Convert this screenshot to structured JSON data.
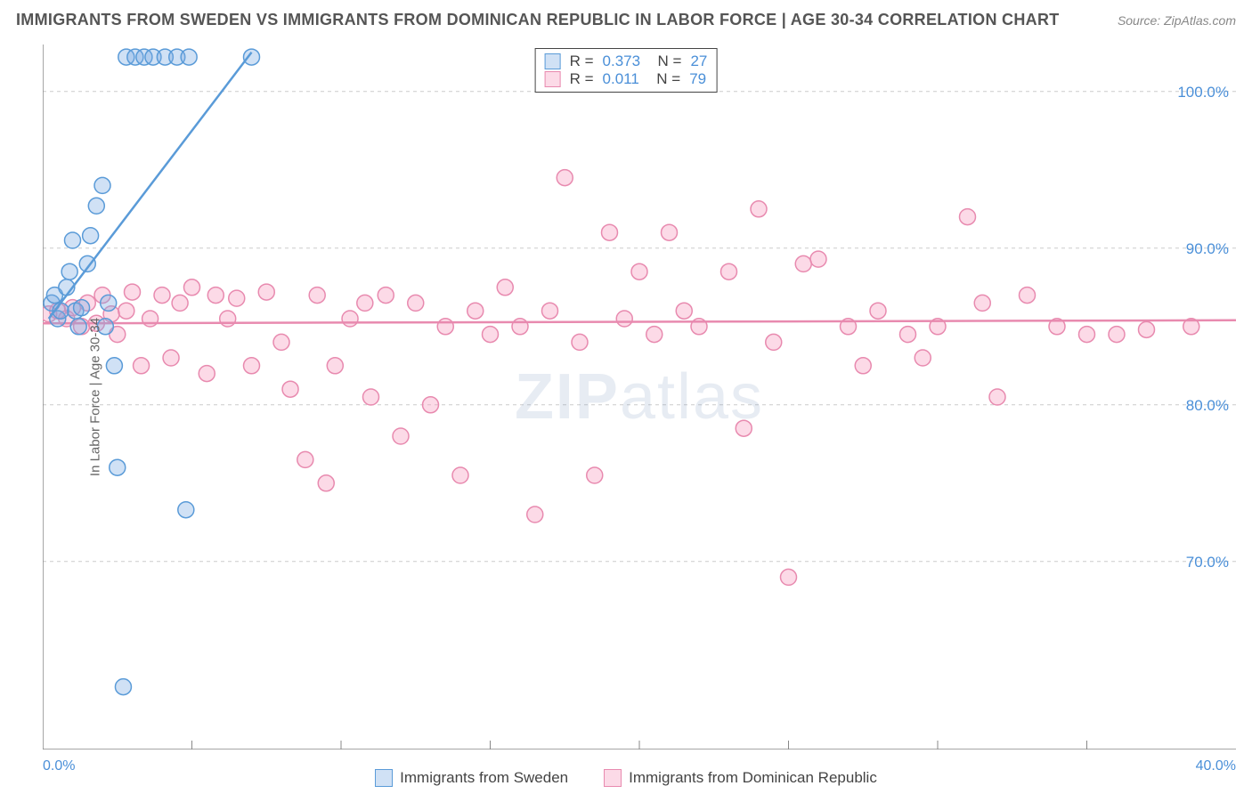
{
  "title": "IMMIGRANTS FROM SWEDEN VS IMMIGRANTS FROM DOMINICAN REPUBLIC IN LABOR FORCE | AGE 30-34 CORRELATION CHART",
  "source": "Source: ZipAtlas.com",
  "ylabel": "In Labor Force | Age 30-34",
  "watermark_a": "ZIP",
  "watermark_b": "atlas",
  "chart": {
    "type": "scatter",
    "xlim": [
      0,
      40
    ],
    "ylim": [
      58,
      103
    ],
    "x_ticks": [
      0,
      5,
      10,
      15,
      20,
      25,
      30,
      35,
      40
    ],
    "y_ticks": [
      70,
      80,
      90,
      100
    ],
    "x_tick_labels_show": [
      "0.0%",
      "40.0%"
    ],
    "y_tick_labels": [
      "70.0%",
      "80.0%",
      "90.0%",
      "100.0%"
    ],
    "grid_color": "#cccccc",
    "axis_color": "#888888",
    "background_color": "#ffffff",
    "tick_label_color": "#4a8fd8",
    "marker_radius": 9,
    "marker_stroke_width": 1.5,
    "line_width": 2.5,
    "series": [
      {
        "name": "Immigrants from Sweden",
        "fill": "rgba(120,170,225,0.35)",
        "stroke": "#5a9bd8",
        "R": "0.373",
        "N": "27",
        "trend": {
          "x1": 0.2,
          "y1": 85.5,
          "x2": 7.0,
          "y2": 102.5
        },
        "points": [
          [
            0.3,
            86.5
          ],
          [
            0.4,
            87.0
          ],
          [
            0.5,
            85.5
          ],
          [
            0.6,
            86.0
          ],
          [
            0.8,
            87.5
          ],
          [
            0.9,
            88.5
          ],
          [
            1.0,
            90.5
          ],
          [
            1.1,
            86.0
          ],
          [
            1.2,
            85.0
          ],
          [
            1.3,
            86.2
          ],
          [
            1.5,
            89.0
          ],
          [
            1.6,
            90.8
          ],
          [
            1.8,
            92.7
          ],
          [
            2.0,
            94.0
          ],
          [
            2.1,
            85.0
          ],
          [
            2.2,
            86.5
          ],
          [
            2.4,
            82.5
          ],
          [
            2.8,
            102.2
          ],
          [
            3.1,
            102.2
          ],
          [
            3.4,
            102.2
          ],
          [
            3.7,
            102.2
          ],
          [
            4.1,
            102.2
          ],
          [
            4.5,
            102.2
          ],
          [
            4.9,
            102.2
          ],
          [
            7.0,
            102.2
          ],
          [
            2.5,
            76.0
          ],
          [
            4.8,
            73.3
          ],
          [
            2.7,
            62.0
          ]
        ]
      },
      {
        "name": "Immigrants from Dominican Republic",
        "fill": "rgba(245,150,185,0.35)",
        "stroke": "#e88aaf",
        "R": "0.011",
        "N": "79",
        "trend": {
          "x1": 0,
          "y1": 85.2,
          "x2": 40,
          "y2": 85.4
        },
        "points": [
          [
            0.2,
            85.8
          ],
          [
            0.5,
            86.0
          ],
          [
            0.8,
            85.5
          ],
          [
            1.0,
            86.2
          ],
          [
            1.3,
            85.0
          ],
          [
            1.5,
            86.5
          ],
          [
            1.8,
            85.2
          ],
          [
            2.0,
            87.0
          ],
          [
            2.3,
            85.8
          ],
          [
            2.5,
            84.5
          ],
          [
            2.8,
            86.0
          ],
          [
            3.0,
            87.2
          ],
          [
            3.3,
            82.5
          ],
          [
            3.6,
            85.5
          ],
          [
            4.0,
            87.0
          ],
          [
            4.3,
            83.0
          ],
          [
            4.6,
            86.5
          ],
          [
            5.0,
            87.5
          ],
          [
            5.5,
            82.0
          ],
          [
            5.8,
            87.0
          ],
          [
            6.2,
            85.5
          ],
          [
            6.5,
            86.8
          ],
          [
            7.0,
            82.5
          ],
          [
            7.5,
            87.2
          ],
          [
            8.0,
            84.0
          ],
          [
            8.3,
            81.0
          ],
          [
            8.8,
            76.5
          ],
          [
            9.2,
            87.0
          ],
          [
            9.5,
            75.0
          ],
          [
            9.8,
            82.5
          ],
          [
            10.3,
            85.5
          ],
          [
            10.8,
            86.5
          ],
          [
            11.0,
            80.5
          ],
          [
            11.5,
            87.0
          ],
          [
            12.0,
            78.0
          ],
          [
            12.5,
            86.5
          ],
          [
            13.0,
            80.0
          ],
          [
            13.5,
            85.0
          ],
          [
            14.0,
            75.5
          ],
          [
            14.5,
            86.0
          ],
          [
            15.0,
            84.5
          ],
          [
            15.5,
            87.5
          ],
          [
            16.0,
            85.0
          ],
          [
            16.5,
            73.0
          ],
          [
            17.0,
            86.0
          ],
          [
            17.5,
            94.5
          ],
          [
            18.0,
            84.0
          ],
          [
            18.5,
            75.5
          ],
          [
            19.0,
            91.0
          ],
          [
            19.5,
            85.5
          ],
          [
            20.0,
            88.5
          ],
          [
            20.5,
            84.5
          ],
          [
            21.0,
            91.0
          ],
          [
            21.5,
            86.0
          ],
          [
            22.0,
            85.0
          ],
          [
            23.0,
            88.5
          ],
          [
            23.5,
            78.5
          ],
          [
            24.0,
            92.5
          ],
          [
            24.5,
            84.0
          ],
          [
            25.0,
            69.0
          ],
          [
            25.5,
            89.0
          ],
          [
            26.0,
            89.3
          ],
          [
            27.0,
            85.0
          ],
          [
            27.5,
            82.5
          ],
          [
            28.0,
            86.0
          ],
          [
            29.0,
            84.5
          ],
          [
            29.5,
            83.0
          ],
          [
            30.0,
            85.0
          ],
          [
            31.0,
            92.0
          ],
          [
            31.5,
            86.5
          ],
          [
            32.0,
            80.5
          ],
          [
            33.0,
            87.0
          ],
          [
            34.0,
            85.0
          ],
          [
            35.0,
            84.5
          ],
          [
            36.0,
            84.5
          ],
          [
            37.0,
            84.8
          ],
          [
            38.5,
            85.0
          ]
        ]
      }
    ]
  },
  "r_legend": {
    "R_label": "R =",
    "N_label": "N ="
  }
}
